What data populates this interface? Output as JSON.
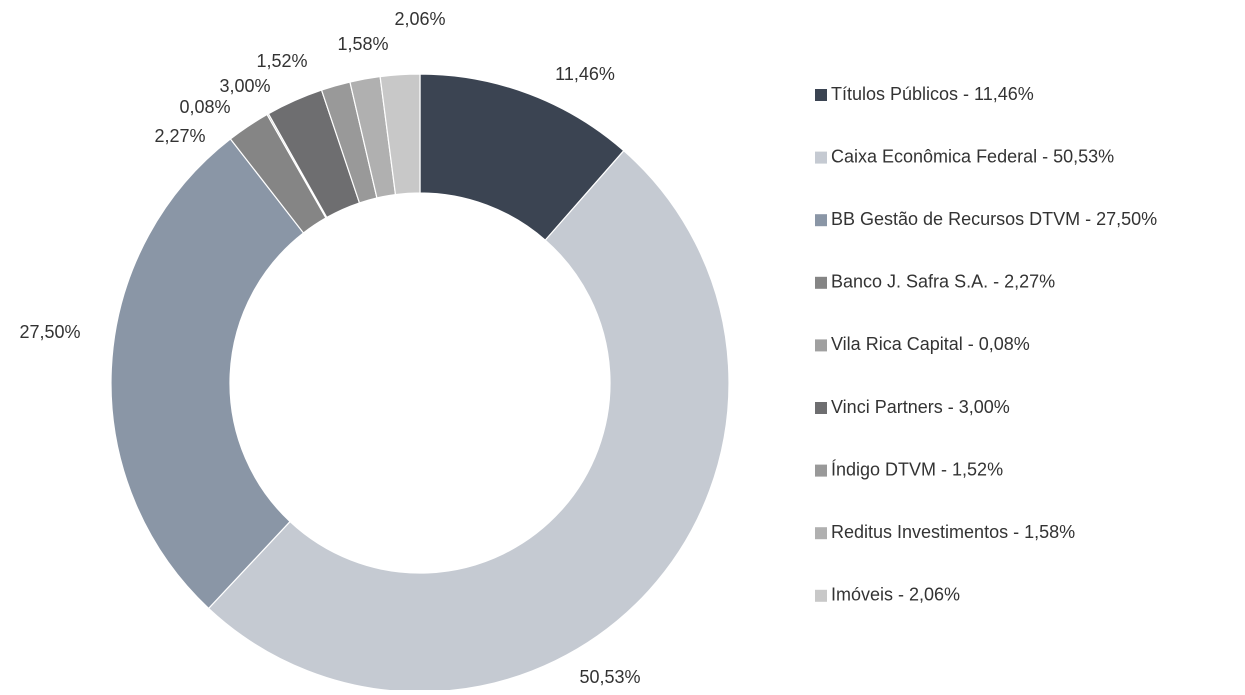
{
  "chart_data": {
    "type": "donut",
    "categories": [
      "Títulos Públicos - 11,46%",
      "Caixa Econômica Federal - 50,53%",
      "BB Gestão de Recursos DTVM - 27,50%",
      "Banco J. Safra S.A. - 2,27%",
      "Vila Rica Capital - 0,08%",
      "Vinci Partners - 3,00%",
      "Índigo DTVM - 1,52%",
      "Reditus Investimentos - 1,58%",
      "Imóveis - 2,06%"
    ],
    "values": [
      11.46,
      50.53,
      27.5,
      2.27,
      0.08,
      3.0,
      1.52,
      1.58,
      2.06
    ],
    "value_labels": [
      "11,46%",
      "50,53%",
      "27,50%",
      "2,27%",
      "0,08%",
      "3,00%",
      "1,52%",
      "1,58%",
      "2,06%"
    ],
    "colors": [
      "#3b4452",
      "#c5cad2",
      "#8a96a6",
      "#858585",
      "#a0a0a0",
      "#6e6e70",
      "#999999",
      "#b0b0b0",
      "#c8c8c8"
    ],
    "legend": "right"
  }
}
